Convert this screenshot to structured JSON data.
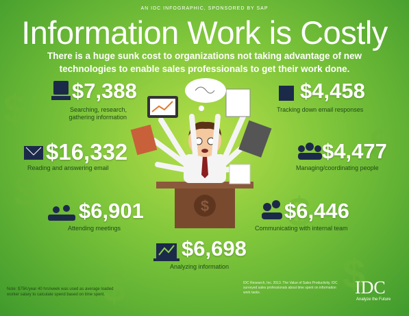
{
  "header": {
    "kicker": "AN IDC INFOGRAPHIC, SPONSORED BY SAP",
    "title": "Information Work is Costly",
    "subtitle": [
      "There is a huge sunk cost to organizations not taking advantage of new",
      "technologies to enable sales professionals to get their work done."
    ]
  },
  "items": [
    {
      "amount": "$7,388",
      "label": [
        "Searching, research,",
        "gathering information"
      ]
    },
    {
      "amount": "$4,458",
      "label": [
        "Tracking down email responses"
      ]
    },
    {
      "amount": "$16,332",
      "label": [
        "Reading and answering email"
      ]
    },
    {
      "amount": "$4,477",
      "label": [
        "Managing/coordinating people"
      ]
    },
    {
      "amount": "$6,901",
      "label": [
        "Attending meetings"
      ]
    },
    {
      "amount": "$6,446",
      "label": [
        "Communicating with internal team"
      ]
    },
    {
      "amount": "$6,698",
      "label": [
        "Analyzing information"
      ]
    }
  ],
  "footer": {
    "note": "Note: $75K/year 40 hrs/week was used as average loaded worker salary to calculate spend based on time spent.",
    "source": "IDC Research, Inc. 2013. The Value of Sales Productivity. IDC surveyed sales professionals about time spent on information work tasks.",
    "logo": "IDC",
    "tagline": "Analyze the Future"
  }
}
